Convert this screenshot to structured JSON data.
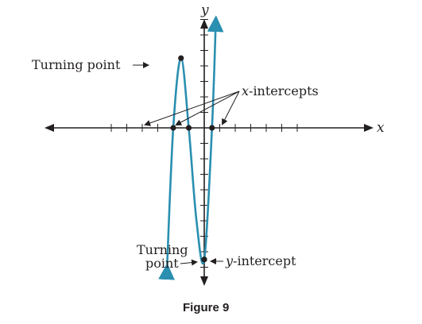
{
  "chart_data": {
    "type": "line",
    "title": "",
    "caption": "Figure 9",
    "xlabel": "x",
    "ylabel": "y",
    "xlim": [
      -6,
      6
    ],
    "ylim": [
      -9,
      7
    ],
    "grid": false,
    "tick_labels_shown": false,
    "series": [
      {
        "name": "",
        "color": "#2a8fb0",
        "expression": "y = (x+2)(x+1)(x-0.5) scaled cubic",
        "x": [
          -2.4,
          -2.0,
          -1.5,
          -1.0,
          -0.5,
          0.0,
          0.5,
          0.75
        ],
        "y": [
          -9.0,
          0.0,
          4.5,
          0.0,
          -6.0,
          -8.5,
          0.0,
          7.0
        ]
      }
    ],
    "points": [
      {
        "name": "turning-point-max",
        "x": -1.5,
        "y": 4.5
      },
      {
        "name": "turning-point-min",
        "x": 0.0,
        "y": -8.5
      },
      {
        "name": "x-intercept-1",
        "x": -2.0,
        "y": 0
      },
      {
        "name": "x-intercept-2",
        "x": -1.0,
        "y": 0
      },
      {
        "name": "x-intercept-3",
        "x": 0.5,
        "y": 0
      },
      {
        "name": "y-intercept",
        "x": 0.0,
        "y": -8.5
      }
    ],
    "annotations": {
      "turning_point_top": "Turning point",
      "turning_point_bottom_line1": "Turning",
      "turning_point_bottom_line2": "point",
      "x_intercepts": "x-intercepts",
      "y_intercept": "y-intercept"
    }
  }
}
